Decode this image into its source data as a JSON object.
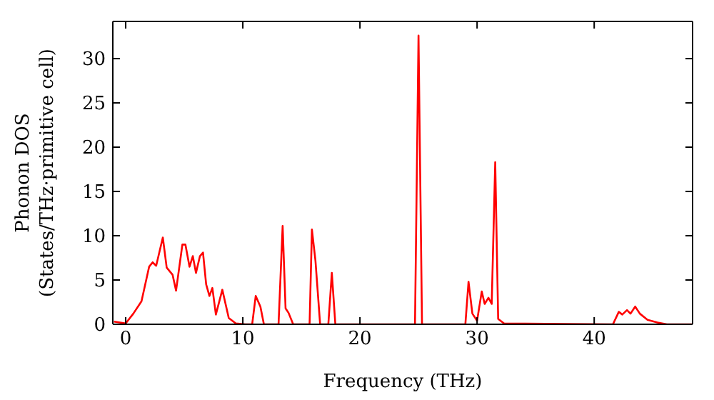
{
  "chart_data": {
    "type": "line",
    "xlabel": "Frequency (THz)",
    "ylabel": "Phonon DOS\n(States/THz·primitive cell)",
    "x": [
      -1.0,
      0,
      0.65,
      1.35,
      2.0,
      2.3,
      2.6,
      3.17,
      3.5,
      4.0,
      4.3,
      4.84,
      5.1,
      5.45,
      5.73,
      6.0,
      6.34,
      6.6,
      6.87,
      7.15,
      7.4,
      7.7,
      8.25,
      8.8,
      9.4,
      10.2,
      10.8,
      11.1,
      11.5,
      11.8,
      13.05,
      13.4,
      13.65,
      13.9,
      14.3,
      15.7,
      15.9,
      16.2,
      16.6,
      17.3,
      17.6,
      17.9,
      24.7,
      25.0,
      25.3,
      29.0,
      29.27,
      29.6,
      30.0,
      30.4,
      30.65,
      30.97,
      31.25,
      31.55,
      31.8,
      32.3,
      41.6,
      42.1,
      42.4,
      42.8,
      43.1,
      43.5,
      43.9,
      44.55,
      45.4,
      46.2,
      48.4
    ],
    "series": [
      {
        "color": "#ff0000",
        "values": [
          0.3,
          0.1,
          1.2,
          2.6,
          6.5,
          7.0,
          6.6,
          9.8,
          6.4,
          5.6,
          3.8,
          9.0,
          9.0,
          6.5,
          7.7,
          5.8,
          7.7,
          8.1,
          4.5,
          3.2,
          4.1,
          1.1,
          3.9,
          0.7,
          0.1,
          0,
          0,
          3.2,
          2.0,
          0,
          0,
          11.1,
          1.8,
          1.3,
          0,
          0,
          10.7,
          7.2,
          0,
          0,
          5.8,
          0,
          0,
          32.6,
          0,
          0,
          4.8,
          1.2,
          0.4,
          3.7,
          2.3,
          3.0,
          2.3,
          18.3,
          0.6,
          0.1,
          0,
          1.4,
          1.1,
          1.6,
          1.2,
          2.0,
          1.2,
          0.5,
          0.2,
          0,
          0
        ]
      }
    ],
    "xlim": [
      -1.1,
      48.4
    ],
    "xticks": [
      0,
      10,
      20,
      30,
      40
    ],
    "ylim": [
      0,
      34.2
    ],
    "yticks": [
      0,
      5,
      10,
      15,
      20,
      25,
      30
    ],
    "grid": false,
    "legend": false,
    "marker": "none",
    "line_style": "solid"
  }
}
